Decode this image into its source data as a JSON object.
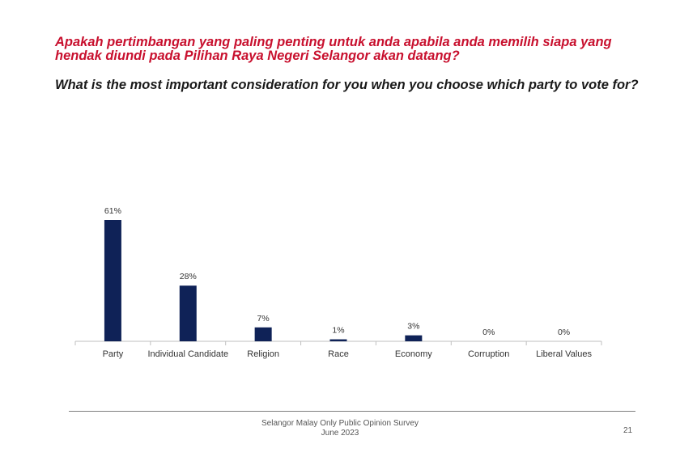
{
  "slide": {
    "title_malay": "Apakah pertimbangan yang paling penting untuk anda apabila anda memilih siapa yang hendak diundi pada Pilihan Raya Negeri Selangor akan datang?",
    "title_english": "What is the most important consideration for you when you choose which party to vote for?",
    "footer_line1": "Selangor Malay Only Public Opinion Survey",
    "footer_line2": "June 2023",
    "page_number": "21"
  },
  "colors": {
    "title_red": "#c8102e",
    "bar": "#0f2257",
    "axis": "#bfbfbf"
  },
  "chart_data": {
    "type": "bar",
    "title": "",
    "xlabel": "",
    "ylabel": "",
    "ylim": [
      0,
      70
    ],
    "categories": [
      "Party",
      "Individual Candidate",
      "Religion",
      "Race",
      "Economy",
      "Corruption",
      "Liberal Values"
    ],
    "values": [
      61,
      28,
      7,
      1,
      3,
      0,
      0
    ],
    "data_labels": [
      "61%",
      "28%",
      "7%",
      "1%",
      "3%",
      "0%",
      "0%"
    ],
    "grid": false,
    "legend": "none"
  }
}
